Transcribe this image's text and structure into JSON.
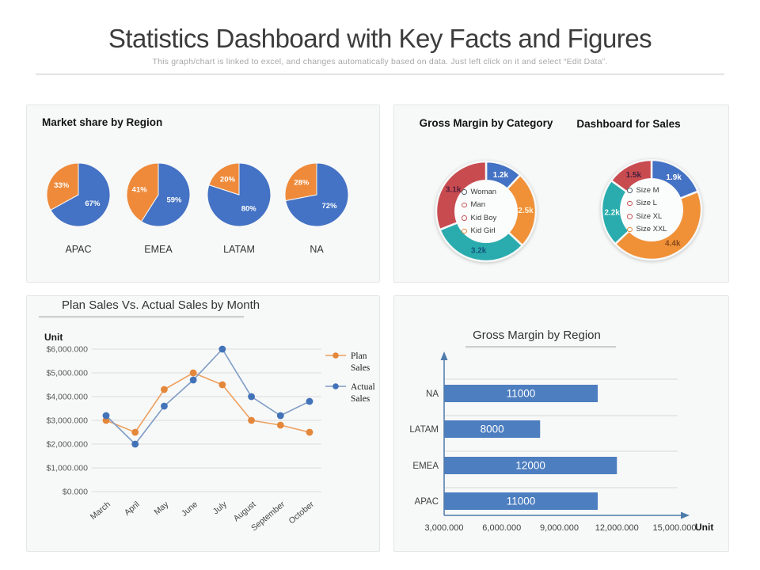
{
  "header": {
    "title": "Statistics Dashboard with Key Facts and Figures",
    "subtitle": "This graph/chart is linked to excel, and changes automatically  based on data. Just left click on it and select “Edit Data”."
  },
  "colors": {
    "blue": "#4472c4",
    "orange": "#ee8a3a",
    "teal": "#2aacae",
    "red": "#c84b50",
    "bar_blue": "#4d7ec0",
    "axis_blue": "#4f7bab",
    "grid": "#d9d9d9",
    "panel_bg": "#f7f8f8"
  },
  "chart_data": [
    {
      "id": "market_share_pies",
      "type": "pie",
      "title": "Market share by Region",
      "pies": [
        {
          "category": "APAC",
          "slices": [
            {
              "value": 67,
              "label": "67%",
              "color": "#4472c4"
            },
            {
              "value": 33,
              "label": "33%",
              "color": "#ee8a3a"
            }
          ]
        },
        {
          "category": "EMEA",
          "slices": [
            {
              "value": 59,
              "label": "59%",
              "color": "#4472c4"
            },
            {
              "value": 41,
              "label": "41%",
              "color": "#ee8a3a"
            }
          ]
        },
        {
          "category": "LATAM",
          "slices": [
            {
              "value": 80,
              "label": "80%",
              "color": "#4472c4"
            },
            {
              "value": 20,
              "label": "20%",
              "color": "#ee8a3a"
            }
          ]
        },
        {
          "category": "NA",
          "slices": [
            {
              "value": 72,
              "label": "72%",
              "color": "#4472c4"
            },
            {
              "value": 28,
              "label": "28%",
              "color": "#ee8a3a"
            }
          ]
        }
      ]
    },
    {
      "id": "gross_margin_category_donut",
      "type": "donut",
      "title": "Gross Margin by Category",
      "segments": [
        {
          "value": 1.2,
          "label": "1.2k",
          "color": "#4472c4",
          "label_color": "#ffffff"
        },
        {
          "value": 2.5,
          "label": "2.5k",
          "color": "#f09138",
          "label_color": "#fdf3dc"
        },
        {
          "value": 3.2,
          "label": "3.2k",
          "color": "#2aacae",
          "label_color": "#15547a"
        },
        {
          "value": 3.1,
          "label": "3.1k",
          "color": "#c84b50",
          "label_color": "#571f3c"
        }
      ],
      "legend": [
        {
          "label": "Woman",
          "marker_color": "#4a5a6a"
        },
        {
          "label": "Man",
          "marker_color": "#c85250"
        },
        {
          "label": "Kid Boy",
          "marker_color": "#c85250"
        },
        {
          "label": "Kid Girl",
          "marker_color": "#e8883a"
        }
      ]
    },
    {
      "id": "dashboard_for_sales_donut",
      "type": "donut",
      "title": "Dashboard for Sales",
      "segments": [
        {
          "value": 1.9,
          "label": "1.9k",
          "color": "#4472c4",
          "label_color": "#ffffff"
        },
        {
          "value": 4.4,
          "label": "4.4k",
          "color": "#f09138",
          "label_color": "#8a4b1a"
        },
        {
          "value": 2.2,
          "label": "2.2k",
          "color": "#2aacae",
          "label_color": "#eefbf4"
        },
        {
          "value": 1.5,
          "label": "1.5k",
          "color": "#c84b50",
          "label_color": "#43203a"
        }
      ],
      "legend": [
        {
          "label": "Size  M",
          "marker_color": "#4a5a6a"
        },
        {
          "label": "Size  L",
          "marker_color": "#c85250"
        },
        {
          "label": "Size  XL",
          "marker_color": "#c85250"
        },
        {
          "label": "Size  XXL",
          "marker_color": "#e8883a"
        }
      ]
    },
    {
      "id": "plan_vs_actual_line",
      "type": "line",
      "title": "Plan Sales Vs. Actual Sales by Month",
      "unit_label": "Unit",
      "categories": [
        "March",
        "April",
        "May",
        "June",
        "July",
        "August",
        "September",
        "October"
      ],
      "yticks": [
        "$6,000.000",
        "$5,000.000",
        "$4,000.000",
        "$3,000.000",
        "$2,000.000",
        "$1,000.000",
        "$0.000"
      ],
      "ymin": 0,
      "ymax": 6000000,
      "series": [
        {
          "name": "Plan Sales",
          "legend_lines": [
            "Plan",
            "Sales"
          ],
          "line_color": "#eda05e",
          "marker_color": "#e3873b",
          "values": [
            3000000,
            2500000,
            4300000,
            5000000,
            4500000,
            3000000,
            2800000,
            2500000
          ]
        },
        {
          "name": "Actual Sales",
          "legend_lines": [
            "Actual",
            "Sales"
          ],
          "line_color": "#7e9cc5",
          "marker_color": "#4273b9",
          "values": [
            3200000,
            2000000,
            3600000,
            4700000,
            6000000,
            4000000,
            3200000,
            3800000
          ]
        }
      ]
    },
    {
      "id": "gross_margin_region_bar",
      "type": "bar",
      "title": "Gross Margin by Region",
      "xlabel": "Unit",
      "categories": [
        "NA",
        "LATAM",
        "EMEA",
        "APAC"
      ],
      "values": [
        11000,
        8000,
        12000,
        11000
      ],
      "value_labels": [
        "11000",
        "8000",
        "12000",
        "11000"
      ],
      "xticks": [
        {
          "label": "3,000.000",
          "value": 3000
        },
        {
          "label": "6,000.000",
          "value": 6000
        },
        {
          "label": "9,000.000",
          "value": 9000
        },
        {
          "label": "12,000.000",
          "value": 12000
        },
        {
          "label": "15,000.000",
          "value": 15000
        }
      ],
      "xmin": 3000,
      "xmax": 15000,
      "bar_color": "#4d7ec0",
      "bar_label_color": "#ffffff"
    }
  ]
}
